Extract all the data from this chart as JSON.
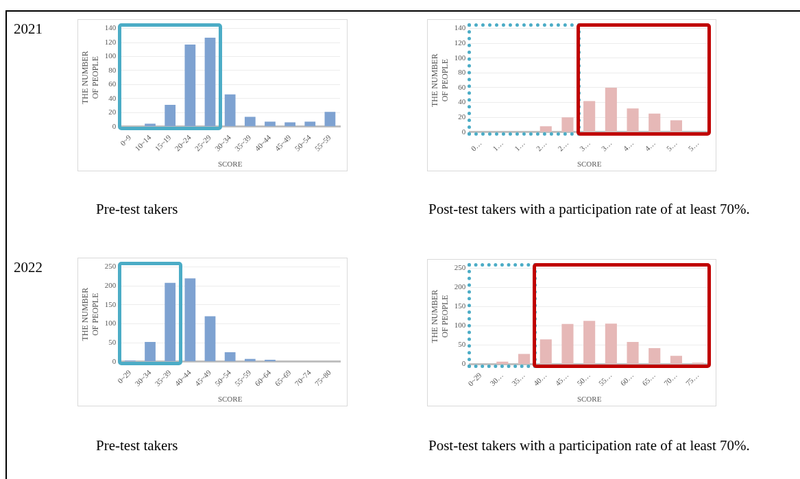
{
  "chart_data": [
    {
      "type": "bar",
      "title": "2021",
      "categories": [
        "0~9",
        "10~14",
        "15~19",
        "20~24",
        "25~29",
        "30~34",
        "35~39",
        "40~44",
        "45~49",
        "50~54",
        "55~59"
      ],
      "values": [
        0,
        4,
        31,
        117,
        127,
        46,
        14,
        7,
        6,
        7,
        21
      ],
      "color": "#7ea2d1",
      "ylim": [
        0,
        140
      ],
      "yticks": [
        0,
        20,
        40,
        60,
        80,
        100,
        120,
        140
      ],
      "grid": "y",
      "legend": false,
      "xlabel": "SCORE",
      "ylabel": "THE NUMBER OF PEOPLE",
      "annotations": [
        "Pre-test takers"
      ]
    },
    {
      "type": "bar",
      "categories": [
        "0…",
        "1…",
        "1…",
        "2…",
        "2…",
        "3…",
        "3…",
        "4…",
        "4…",
        "5…",
        "5…"
      ],
      "values": [
        0,
        0,
        0,
        8,
        20,
        42,
        60,
        32,
        25,
        16,
        0
      ],
      "color": "#e6b8b7",
      "ylim": [
        0,
        140
      ],
      "yticks": [
        0,
        20,
        40,
        60,
        80,
        100,
        120,
        140
      ],
      "grid": "y",
      "legend": false,
      "xlabel": "SCORE",
      "ylabel": "THE NUMBER OF PEOPLE",
      "annotations": [
        "Post-test takers with a participation rate of at least 70%."
      ]
    },
    {
      "type": "bar",
      "title": "2022",
      "categories": [
        "0~29",
        "30~34",
        "35~39",
        "40~44",
        "45~49",
        "50~54",
        "55~59",
        "60~64",
        "65~69",
        "70~74",
        "75~80"
      ],
      "values": [
        3,
        52,
        208,
        220,
        120,
        25,
        7,
        5,
        0,
        0,
        0
      ],
      "color": "#7ea2d1",
      "ylim": [
        0,
        250
      ],
      "yticks": [
        0,
        50,
        100,
        150,
        200,
        250
      ],
      "grid": "y",
      "legend": false,
      "xlabel": "SCORE",
      "ylabel": "THE NUMBER OF PEOPLE",
      "annotations": [
        "Pre-test takers"
      ]
    },
    {
      "type": "bar",
      "categories": [
        "0~29",
        "30…",
        "35…",
        "40…",
        "45…",
        "50…",
        "55…",
        "60…",
        "65…",
        "70…",
        "75…"
      ],
      "values": [
        0,
        7,
        27,
        65,
        105,
        113,
        106,
        58,
        42,
        22,
        4
      ],
      "color": "#e6b8b7",
      "ylim": [
        0,
        250
      ],
      "yticks": [
        0,
        50,
        100,
        150,
        200,
        250
      ],
      "grid": "y",
      "legend": false,
      "xlabel": "SCORE",
      "ylabel": "THE NUMBER OF PEOPLE",
      "annotations": [
        "Post-test takers with a participation rate of at least 70%."
      ]
    }
  ]
}
